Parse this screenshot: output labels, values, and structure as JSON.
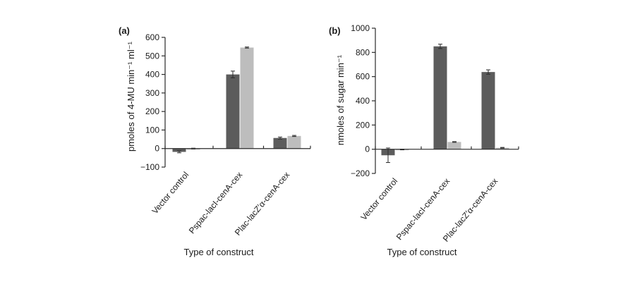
{
  "colors": {
    "series_dark": "#5c5c5c",
    "series_light": "#bdbdbd",
    "axis": "#2a2a2a"
  },
  "chart_data": [
    {
      "panel": "(a)",
      "type": "bar",
      "categories": [
        "Vector control",
        "Pspac-lacI-cenA-cex",
        "Plac-lacZ′α-cenA-cex"
      ],
      "series": [
        {
          "values": [
            -18,
            400,
            57
          ],
          "errors": [
            5,
            18,
            5
          ]
        },
        {
          "values": [
            0,
            545,
            68
          ],
          "errors": [
            2,
            3,
            3
          ]
        }
      ],
      "xlabel": "Type of construct",
      "ylabel": "pmoles of 4-MU min⁻¹ ml⁻¹",
      "ylim": [
        -100,
        600
      ],
      "yticks": [
        -100,
        0,
        100,
        200,
        300,
        400,
        500,
        600
      ],
      "grid": false
    },
    {
      "panel": "(b)",
      "type": "bar",
      "categories": [
        "Vector control",
        "Pspac-lacI-cenA-cex",
        "Plac-lacZ′α-cenA-cex"
      ],
      "series": [
        {
          "values": [
            -50,
            850,
            638
          ],
          "errors": [
            60,
            18,
            18
          ]
        },
        {
          "values": [
            -2,
            60,
            12
          ],
          "errors": [
            3,
            3,
            3
          ]
        }
      ],
      "xlabel": "Type of construct",
      "ylabel": "nmoles of sugar min⁻¹",
      "ylim": [
        -200,
        1000
      ],
      "yticks": [
        -200,
        0,
        200,
        400,
        600,
        800,
        1000
      ],
      "grid": false
    }
  ]
}
